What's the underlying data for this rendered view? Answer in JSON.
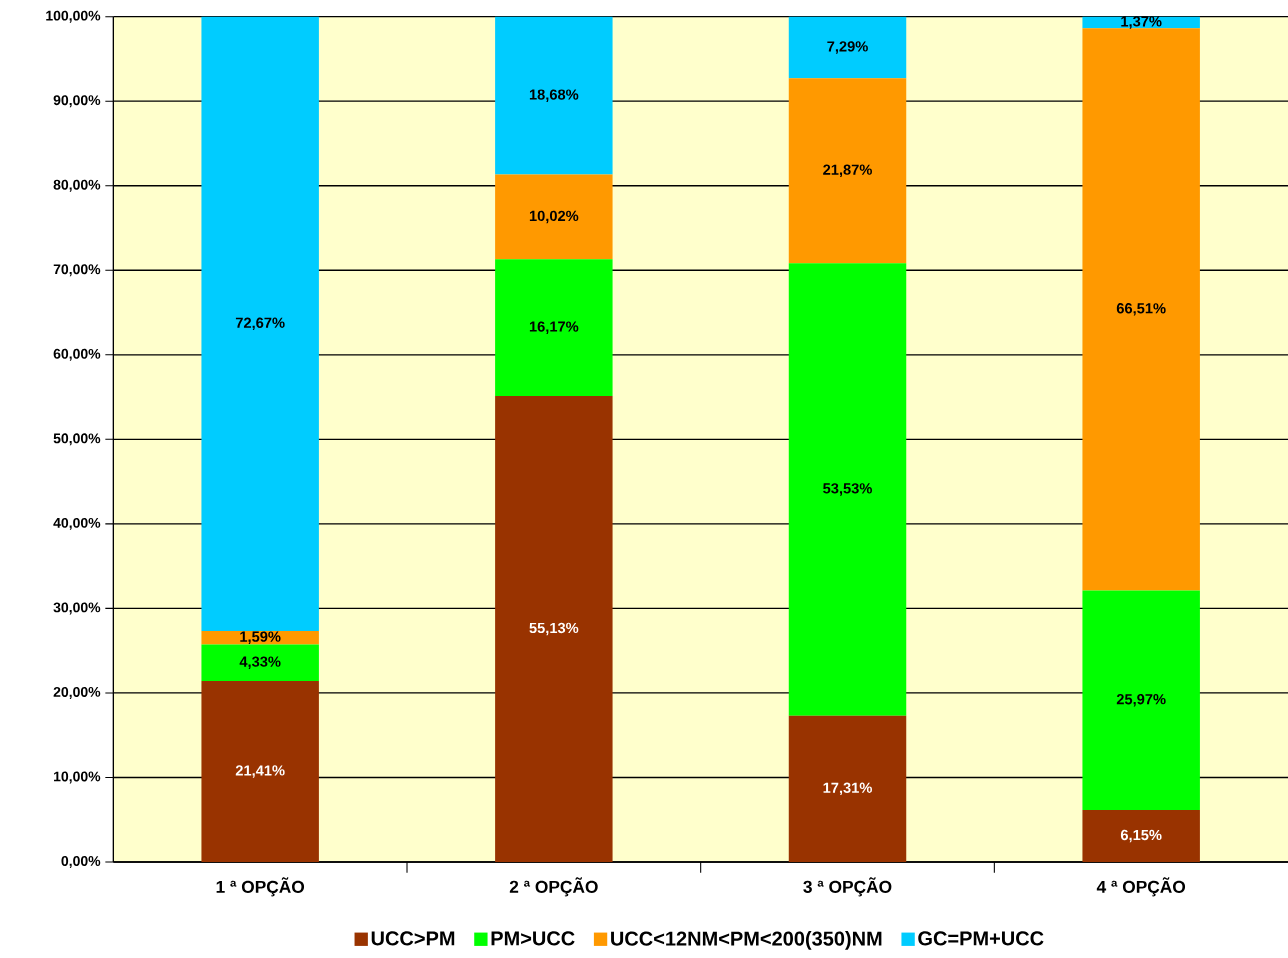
{
  "chart_data": {
    "type": "bar",
    "stacked": true,
    "categories": [
      "1 ª OPÇÃO",
      "2 ª OPÇÃO",
      "3 ª OPÇÃO",
      "4 ª OPÇÃO"
    ],
    "series": [
      {
        "name": "UCC>PM",
        "color": "#993300",
        "values": [
          21.41,
          55.13,
          17.31,
          6.15
        ],
        "value_labels": [
          "21,41%",
          "55,13%",
          "17,31%",
          "6,15%"
        ]
      },
      {
        "name": "PM>UCC",
        "color": "#00ff00",
        "values": [
          4.33,
          16.17,
          53.53,
          25.97
        ],
        "value_labels": [
          "4,33%",
          "16,17%",
          "53,53%",
          "25,97%"
        ]
      },
      {
        "name": "UCC<12NM<PM<200(350)NM",
        "color": "#ff9900",
        "values": [
          1.59,
          10.02,
          21.87,
          66.51
        ],
        "value_labels": [
          "1,59%",
          "10,02%",
          "21,87%",
          "66,51%"
        ]
      },
      {
        "name": "GC=PM+UCC",
        "color": "#00ccff",
        "values": [
          72.67,
          18.68,
          7.29,
          1.37
        ],
        "value_labels": [
          "72,67%",
          "18,68%",
          "7,29%",
          "1,37%"
        ]
      }
    ],
    "ylim": [
      0,
      100
    ],
    "yticks": [
      {
        "value": 0,
        "label": "0,00%"
      },
      {
        "value": 10,
        "label": "10,00%"
      },
      {
        "value": 20,
        "label": "20,00%"
      },
      {
        "value": 30,
        "label": "30,00%"
      },
      {
        "value": 40,
        "label": "40,00%"
      },
      {
        "value": 50,
        "label": "50,00%"
      },
      {
        "value": 60,
        "label": "60,00%"
      },
      {
        "value": 70,
        "label": "70,00%"
      },
      {
        "value": 80,
        "label": "80,00%"
      },
      {
        "value": 90,
        "label": "90,00%"
      },
      {
        "value": 100,
        "label": "100,00%"
      }
    ],
    "grid": "y",
    "legend": "bottom"
  }
}
